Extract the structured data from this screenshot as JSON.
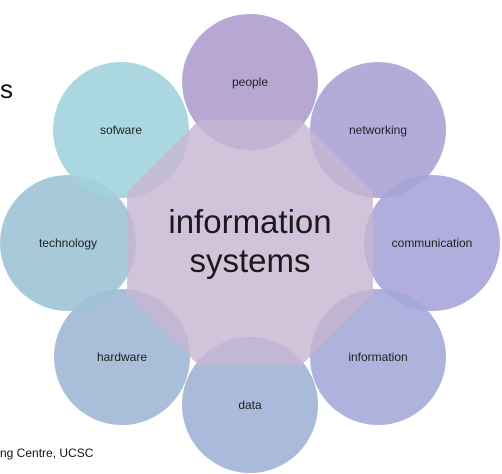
{
  "slide": {
    "title_fragment": "s",
    "footer": "ng Centre, UCSC"
  },
  "diagram": {
    "center": {
      "line1": "information",
      "line2": "systems",
      "color": "#c7b6d2"
    },
    "nodes": [
      {
        "label": "people",
        "color": "#ad9ccd"
      },
      {
        "label": "networking",
        "color": "#a99fd3"
      },
      {
        "label": "communication",
        "color": "#a6a3d8"
      },
      {
        "label": "information",
        "color": "#a2a8d8"
      },
      {
        "label": "data",
        "color": "#9eb0d6"
      },
      {
        "label": "hardware",
        "color": "#9db6d4"
      },
      {
        "label": "technology",
        "color": "#9cc1d5"
      },
      {
        "label": "sofware",
        "color": "#9fd2dc"
      }
    ]
  }
}
